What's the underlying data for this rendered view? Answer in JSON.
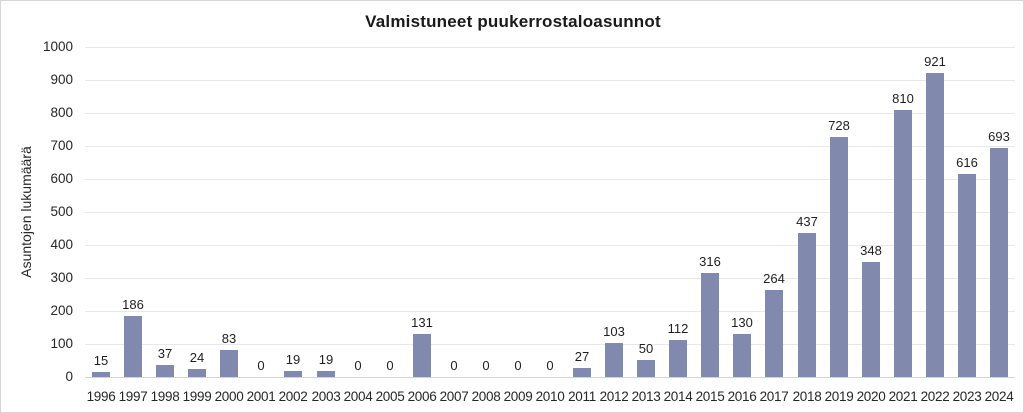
{
  "chart_data": {
    "type": "bar",
    "title": "Valmistuneet puukerrostaloasunnot",
    "ylabel": "Asuntojen lukumäärä",
    "xlabel": "",
    "categories": [
      "1996",
      "1997",
      "1998",
      "1999",
      "2000",
      "2001",
      "2002",
      "2003",
      "2004",
      "2005",
      "2006",
      "2007",
      "2008",
      "2009",
      "2010",
      "2011",
      "2012",
      "2013",
      "2014",
      "2015",
      "2016",
      "2017",
      "2018",
      "2019",
      "2020",
      "2021",
      "2022",
      "2023",
      "2024"
    ],
    "values": [
      15,
      186,
      37,
      24,
      83,
      0,
      19,
      19,
      0,
      0,
      131,
      0,
      0,
      0,
      0,
      27,
      103,
      50,
      112,
      316,
      130,
      264,
      437,
      728,
      348,
      810,
      921,
      616,
      693
    ],
    "data_labels_shown": true,
    "ylim": [
      0,
      1000
    ],
    "ytick_step": 100,
    "grid": "horizontal",
    "legend": "none",
    "colors": {
      "bar": "#8289ae",
      "gridline": "#e8e8e8",
      "axis_line": "#d4d4d4",
      "text": "#262626",
      "background": "#ffffff",
      "border": "#d6d6d6"
    }
  }
}
